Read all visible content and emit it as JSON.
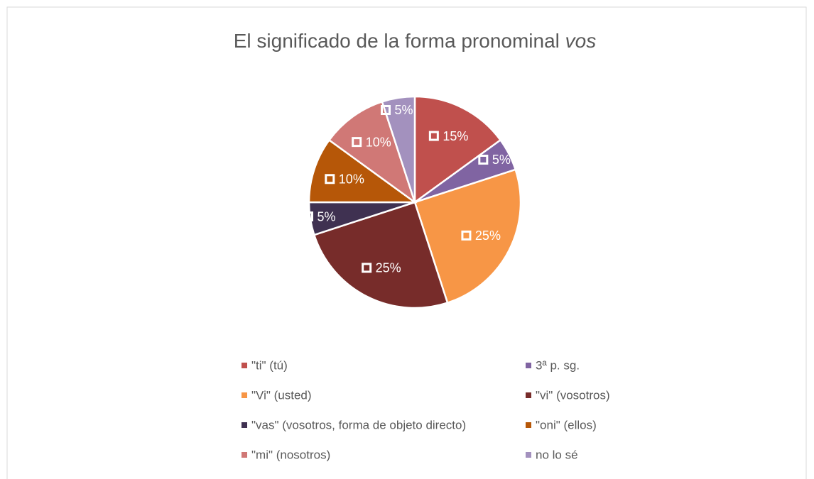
{
  "chart_data": {
    "type": "pie",
    "title": "El significado de la forma pronominal vos",
    "categories": [
      "\"ti\" (tú)",
      "3ª p. sg.",
      "\"Vi\" (usted)",
      "\"vi\" (vosotros)",
      "\"vas\" (vosotros, forma de objeto directo)",
      "\"oni\" (ellos)",
      "\"mi\" (nosotros)",
      "no lo sé"
    ],
    "values": [
      15,
      5,
      25,
      25,
      5,
      10,
      10,
      5
    ],
    "value_labels": [
      "15%",
      "5%",
      "25%",
      "25%",
      "5%",
      "10%",
      "10%",
      "5%"
    ],
    "colors": [
      "#c0504d",
      "#8064a2",
      "#f79646",
      "#772c2a",
      "#3f3151",
      "#b65708",
      "#d07876",
      "#a391be"
    ],
    "legend": "bottom"
  }
}
